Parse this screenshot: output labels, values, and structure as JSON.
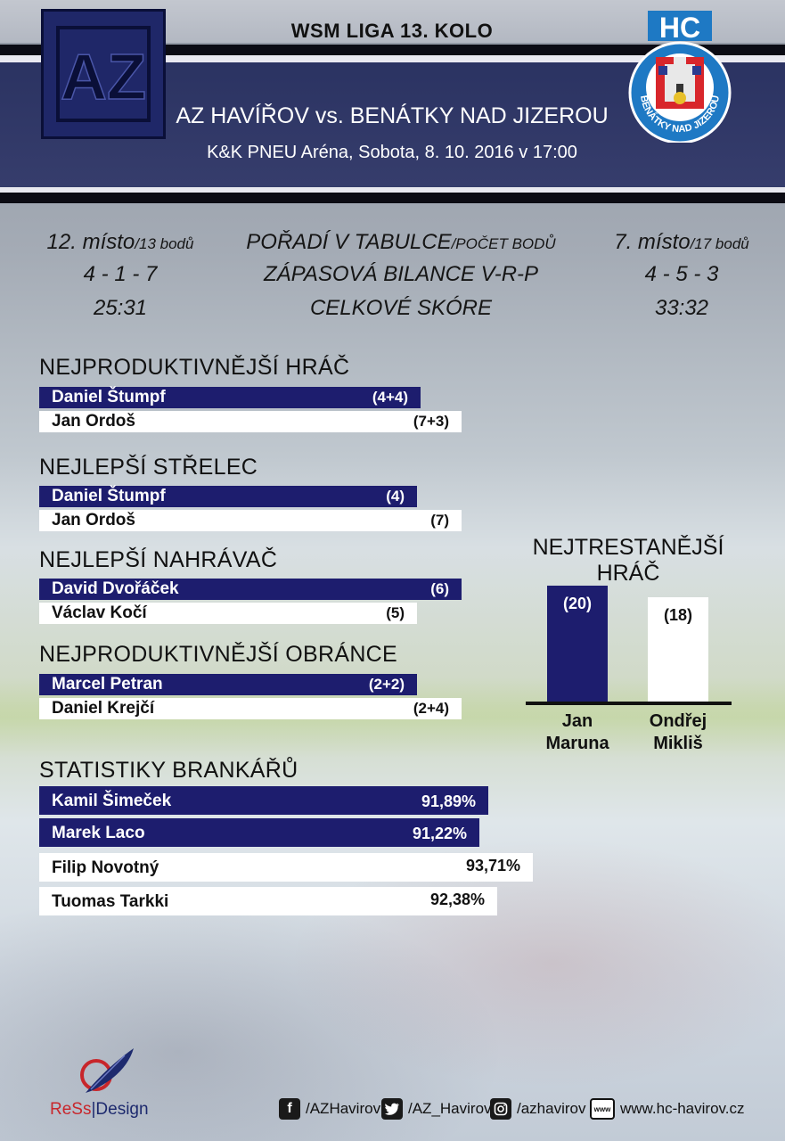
{
  "header": {
    "round": "WSM LIGA 13. KOLO",
    "match": "AZ HAVÍŘOV vs. BENÁTKY NAD JIZEROU",
    "info": "K&K PNEU Aréna, Sobota, 8. 10. 2016 v 17:00",
    "home_logo_text": "AZ",
    "away_logo_text": "HC",
    "away_logo_ring": "BENÁTKY NAD JIZEROU"
  },
  "comparison": {
    "home": {
      "place": "12. místo",
      "points": "/13 bodů",
      "record": "4 - 1 - 7",
      "score": "25:31"
    },
    "labels": {
      "standing": "POŘADÍ V TABULCE",
      "standing_sub": "/POČET BODŮ",
      "record": "ZÁPASOVÁ BILANCE V-R-P",
      "score": "CELKOVÉ SKÓRE"
    },
    "away": {
      "place": "7. místo",
      "points": "/17 bodů",
      "record": "4 - 5 - 3",
      "score": "33:32"
    }
  },
  "sections": {
    "productive": {
      "title": "NEJPRODUKTIVNĚJŠÍ HRÁČ",
      "home": {
        "name": "Daniel Štumpf",
        "value": "(4+4)"
      },
      "away": {
        "name": "Jan Ordoš",
        "value": "(7+3)"
      }
    },
    "scorer": {
      "title": "NEJLEPŠÍ STŘELEC",
      "home": {
        "name": "Daniel Štumpf",
        "value": "(4)"
      },
      "away": {
        "name": "Jan Ordoš",
        "value": "(7)"
      }
    },
    "assists": {
      "title": "NEJLEPŠÍ NAHRÁVAČ",
      "home": {
        "name": "David Dvořáček",
        "value": "(6)"
      },
      "away": {
        "name": "Václav Kočí",
        "value": "(5)"
      }
    },
    "defender": {
      "title": "NEJPRODUKTIVNĚJŠÍ OBRÁNCE",
      "home": {
        "name": "Marcel Petran",
        "value": "(2+2)"
      },
      "away": {
        "name": "Daniel Krejčí",
        "value": "(2+4)"
      }
    }
  },
  "goalies": {
    "title": "STATISTIKY BRANKÁŘŮ",
    "home": [
      {
        "name": "Kamil Šimeček",
        "value": "91,89%"
      },
      {
        "name": "Marek Laco",
        "value": "91,22%"
      }
    ],
    "away": [
      {
        "name": "Filip Novotný",
        "value": "93,71%"
      },
      {
        "name": "Tuomas Tarkki",
        "value": "92,38%"
      }
    ]
  },
  "penalty": {
    "title": "NEJTRESTANĚJŠÍ HRÁČ",
    "home": {
      "name1": "Jan",
      "name2": "Maruna",
      "value": "(20)",
      "minutes": 20
    },
    "away": {
      "name1": "Ondřej",
      "name2": "Mikliš",
      "value": "(18)",
      "minutes": 18
    }
  },
  "footer": {
    "brand_a": "ReSs",
    "brand_b": "|Design",
    "facebook": "/AZHavirov",
    "twitter": "/AZ_Havirov",
    "instagram": "/azhavirov",
    "web": "www.hc-havirov.cz"
  },
  "colors": {
    "navy": "#1d1d6e",
    "header_band": "#2b3362",
    "white": "#ffffff"
  }
}
